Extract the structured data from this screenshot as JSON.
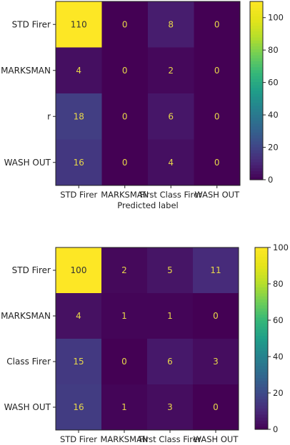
{
  "chart_data": [
    {
      "type": "heatmap",
      "title": "",
      "xlabel": "Predicted label",
      "ylabel": "",
      "x_tick_labels": [
        "STD Firer",
        "MARKSMAN",
        "First Class Firer",
        "WASH OUT"
      ],
      "y_tick_labels": [
        "STD Firer",
        "MARKSMAN",
        "r",
        "WASH OUT"
      ],
      "matrix": [
        [
          110,
          0,
          8,
          0
        ],
        [
          4,
          0,
          2,
          0
        ],
        [
          18,
          0,
          6,
          0
        ],
        [
          16,
          0,
          4,
          0
        ]
      ],
      "colormap": "viridis",
      "colorbar": {
        "range": [
          0,
          110
        ],
        "ticks": [
          0,
          20,
          40,
          60,
          80,
          100
        ]
      }
    },
    {
      "type": "heatmap",
      "title": "",
      "xlabel": "",
      "ylabel": "",
      "x_tick_labels": [
        "STD Firer",
        "MARKSMAN",
        "First Class Firer",
        "WASH OUT"
      ],
      "y_tick_labels": [
        "STD Firer",
        "MARKSMAN",
        "Class Firer",
        "WASH OUT"
      ],
      "matrix": [
        [
          100,
          2,
          5,
          11
        ],
        [
          4,
          1,
          1,
          0
        ],
        [
          15,
          0,
          6,
          3
        ],
        [
          16,
          1,
          3,
          0
        ]
      ],
      "colormap": "viridis",
      "colorbar": {
        "range": [
          0,
          100
        ],
        "ticks": [
          0,
          20,
          40,
          60,
          80,
          100
        ]
      }
    }
  ]
}
